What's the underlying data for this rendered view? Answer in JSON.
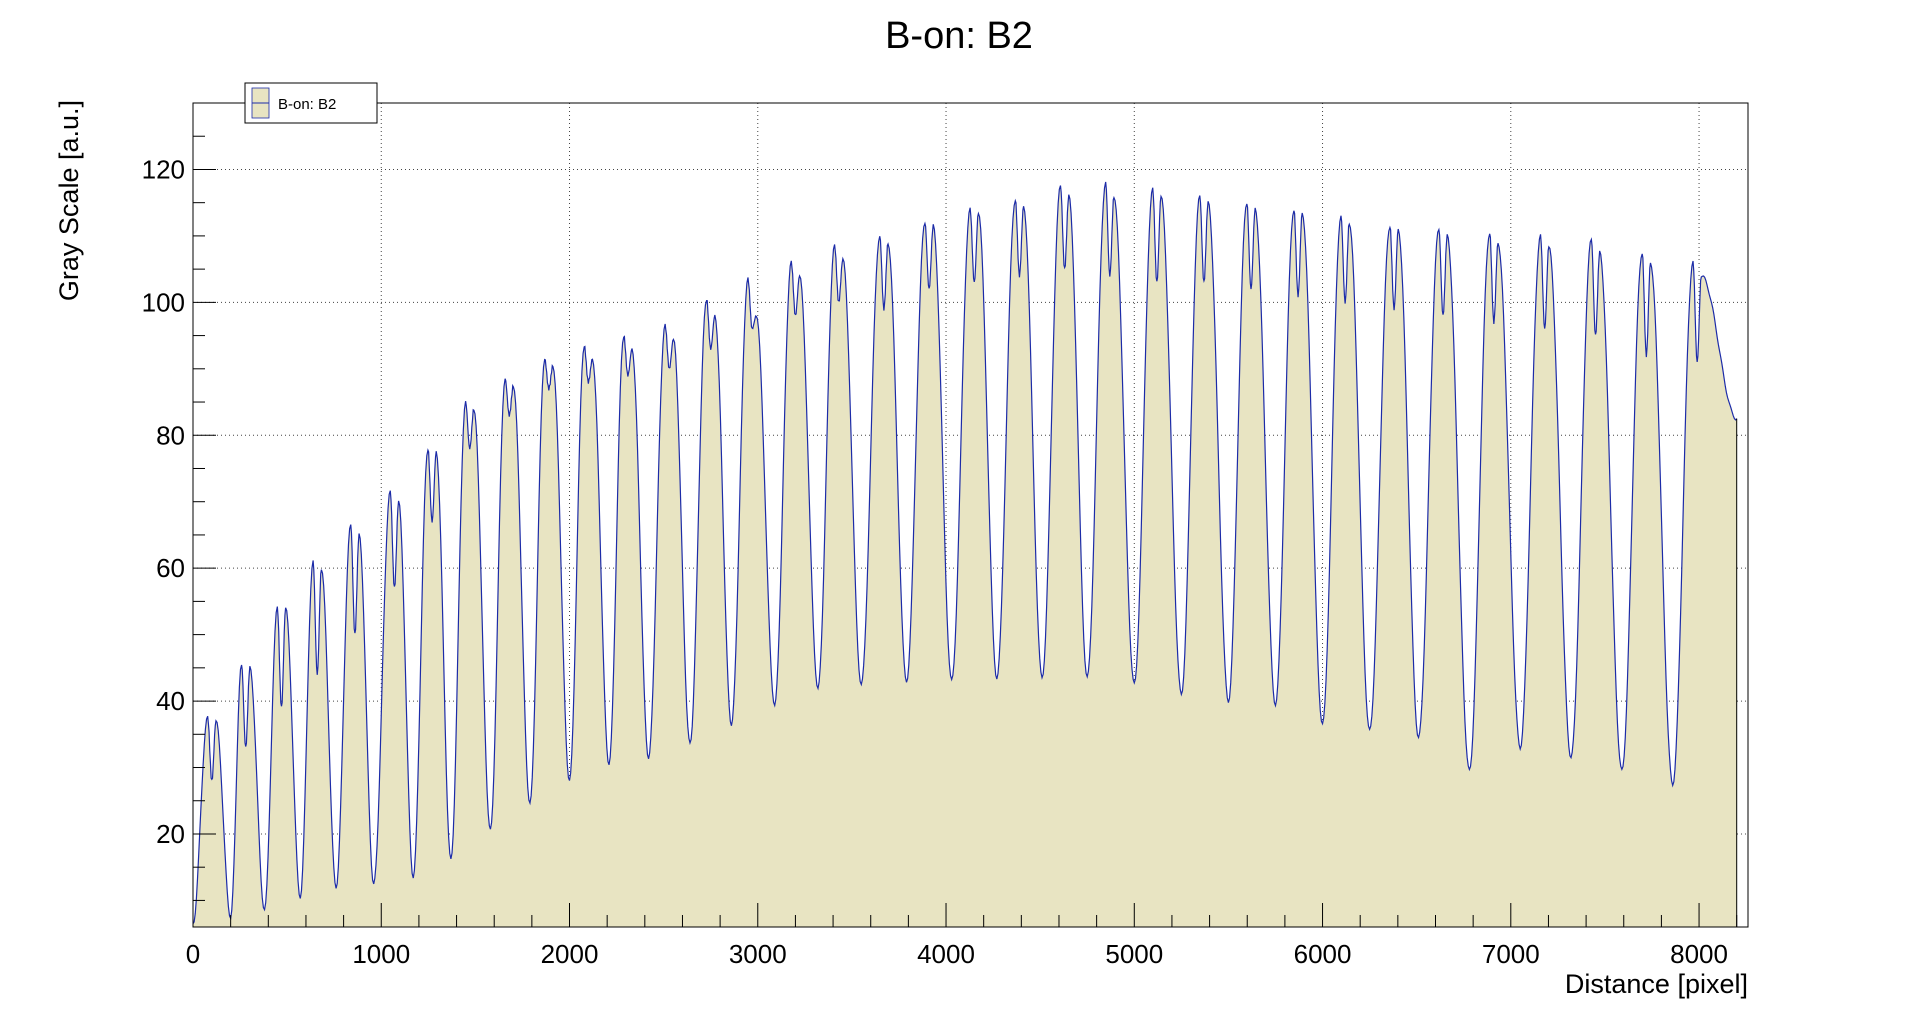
{
  "chart_data": {
    "type": "area",
    "title": "B-on: B2",
    "xlabel": "Distance [pixel]",
    "ylabel": "Gray Scale [a.u.]",
    "xlim": [
      0,
      8260
    ],
    "ylim": [
      6,
      130
    ],
    "x_ticks": [
      0,
      1000,
      2000,
      3000,
      4000,
      5000,
      6000,
      7000,
      8000
    ],
    "y_ticks": [
      20,
      40,
      60,
      80,
      100,
      120
    ],
    "grid": true,
    "legend_position": "top-left",
    "fill_color": "#e8e4c2",
    "line_color": "#1c2ba8",
    "series": [
      {
        "name": "B-on: B2",
        "peak_centers": [
          100,
          280,
          470,
          660,
          860,
          1070,
          1270,
          1470,
          1680,
          1890,
          2100,
          2310,
          2530,
          2750,
          2970,
          3200,
          3430,
          3670,
          3910,
          4150,
          4390,
          4630,
          4870,
          5120,
          5370,
          5620,
          5870,
          6120,
          6380,
          6640,
          6910,
          7180,
          7450,
          7720,
          7990
        ],
        "peak_left_max": [
          37.5,
          45.5,
          54,
          61,
          66.5,
          71.5,
          78,
          85,
          88.5,
          91.5,
          93.5,
          95,
          96.5,
          100.5,
          103.5,
          106,
          108.5,
          110,
          112,
          114,
          115.5,
          117.5,
          118,
          117,
          116,
          115,
          114,
          113,
          111.5,
          111,
          110.5,
          110,
          109.5,
          107.5,
          106
        ],
        "peak_right_max": [
          37,
          45,
          54,
          60,
          65,
          70,
          77.5,
          84,
          87.5,
          90.5,
          91.5,
          93,
          94.5,
          98,
          98,
          104,
          106.5,
          109,
          111.5,
          113.5,
          114.5,
          116,
          116,
          116,
          115,
          114,
          113.5,
          112,
          111,
          110,
          109,
          108.5,
          107.5,
          106,
          104
        ],
        "peak_dip": [
          28,
          33,
          39,
          44,
          50,
          57,
          67,
          78,
          83,
          87,
          88,
          89,
          90,
          93,
          96,
          98,
          100,
          99,
          102,
          103,
          104,
          105,
          104,
          103,
          103,
          102,
          101,
          100,
          99,
          98,
          97,
          96,
          95,
          92,
          91
        ],
        "valley_x": [
          200,
          380,
          570,
          760,
          960,
          1170,
          1370,
          1580,
          1790,
          2000,
          2210,
          2420,
          2640,
          2860,
          3090,
          3320,
          3550,
          3790,
          4030,
          4270,
          4510,
          4750,
          5000,
          5250,
          5500,
          5750,
          6000,
          6250,
          6510,
          6780,
          7050,
          7320,
          7590,
          7860
        ],
        "valley_y": [
          7.5,
          8.5,
          10.5,
          12,
          12.5,
          13.5,
          16,
          20.5,
          24.5,
          28,
          30.5,
          31.5,
          33.5,
          36.5,
          39.5,
          42,
          42.5,
          43,
          43,
          43.5,
          43.5,
          43.5,
          42.5,
          41,
          40,
          39.5,
          36.5,
          35.5,
          34.5,
          29.5,
          33,
          31.5,
          29.5,
          27.5
        ],
        "start": [
          0,
          6.5
        ],
        "end": [
          8200,
          82.5
        ]
      }
    ]
  }
}
